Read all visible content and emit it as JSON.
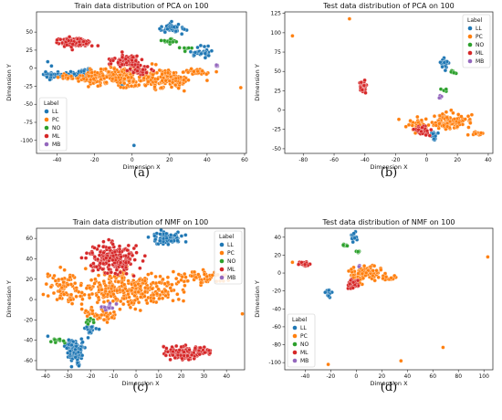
{
  "legend_title": "Label",
  "labels": [
    "LL",
    "PC",
    "NO",
    "ML",
    "MB"
  ],
  "colors": {
    "LL": "#1f77b4",
    "PC": "#ff7f0e",
    "NO": "#2ca02c",
    "ML": "#d62728",
    "MB": "#9467bd"
  },
  "chart_data": [
    {
      "type": "scatter",
      "title": "Train data distribution of PCA on 100",
      "caption": "(a)",
      "xlabel": "Dimension X",
      "ylabel": "Dimension Y",
      "xticks": [
        -40,
        -20,
        0,
        20,
        40,
        60
      ],
      "yticks": [
        -100,
        -75,
        -50,
        -25,
        0,
        25,
        50
      ],
      "xlim": [
        -51,
        61
      ],
      "ylim": [
        -118,
        78
      ],
      "legend_position": "lower-left",
      "series": [
        {
          "name": "LL",
          "clusters": [
            [
              -30,
              -9,
              14,
              3,
              70
            ],
            [
              -44,
              -10,
              3,
              4,
              20
            ],
            [
              22,
              55,
              6,
              6,
              40
            ],
            [
              37,
              22,
              6,
              7,
              30
            ],
            [
              -25,
              -2,
              3,
              4,
              10
            ],
            [
              -4,
              -20,
              3,
              4,
              10
            ]
          ],
          "points": [
            [
              1,
              -107
            ],
            [
              -45,
              9
            ],
            [
              -43,
              3
            ]
          ]
        },
        {
          "name": "PC",
          "clusters": [
            [
              -4,
              -12,
              18,
              12,
              240
            ],
            [
              20,
              -15,
              9,
              9,
              120
            ],
            [
              -20,
              -13,
              6,
              6,
              40
            ],
            [
              35,
              -5,
              5,
              5,
              30
            ],
            [
              -35,
              -13,
              6,
              3,
              20
            ]
          ],
          "points": [
            [
              58,
              -27
            ],
            [
              40,
              -17
            ],
            [
              45,
              -5
            ]
          ]
        },
        {
          "name": "NO",
          "clusters": [
            [
              20,
              36,
              3,
              3,
              18
            ],
            [
              30,
              27,
              3,
              3,
              8
            ]
          ],
          "points": []
        },
        {
          "name": "ML",
          "clusters": [
            [
              -31,
              36,
              7,
              6,
              120
            ],
            [
              -3,
              10,
              7,
              7,
              90
            ],
            [
              5,
              -3,
              5,
              5,
              40
            ]
          ],
          "points": []
        },
        {
          "name": "MB",
          "clusters": [
            [
              45,
              3,
              1,
              2,
              6
            ]
          ],
          "points": []
        }
      ]
    },
    {
      "type": "scatter",
      "title": "Test data distribution of PCA on 100",
      "caption": "(b)",
      "xlabel": "Dimension X",
      "ylabel": "Dimension Y",
      "xticks": [
        -80,
        -60,
        -40,
        -20,
        0,
        20,
        40
      ],
      "yticks": [
        -50,
        -25,
        0,
        25,
        50,
        75,
        100,
        125
      ],
      "xlim": [
        -92,
        43
      ],
      "ylim": [
        -56,
        127
      ],
      "legend_position": "top-right",
      "series": [
        {
          "name": "LL",
          "clusters": [
            [
              12,
              60,
              3,
              7,
              25
            ],
            [
              5,
              -33,
              3,
              5,
              15
            ]
          ],
          "points": []
        },
        {
          "name": "PC",
          "clusters": [
            [
              15,
              -15,
              10,
              10,
              100
            ],
            [
              -6,
              -20,
              6,
              6,
              40
            ],
            [
              33,
              -30,
              4,
              3,
              15
            ]
          ],
          "points": [
            [
              -87,
              96
            ],
            [
              -50,
              118
            ],
            [
              -18,
              -12
            ],
            [
              27,
              -8
            ]
          ]
        },
        {
          "name": "NO",
          "clusters": [
            [
              17,
              49,
              2,
              2,
              8
            ],
            [
              12,
              25,
              2,
              2,
              4
            ]
          ],
          "points": []
        },
        {
          "name": "ML",
          "clusters": [
            [
              -41,
              30,
              2,
              7,
              35
            ],
            [
              -3,
              -27,
              4,
              5,
              30
            ]
          ],
          "points": []
        },
        {
          "name": "MB",
          "clusters": [
            [
              9,
              18,
              1,
              2,
              5
            ]
          ],
          "points": []
        }
      ]
    },
    {
      "type": "scatter",
      "title": "Train data distribution of NMF on 100",
      "caption": "(c)",
      "xlabel": "Dimension X",
      "ylabel": "Dimension Y",
      "xticks": [
        -40,
        -30,
        -20,
        -10,
        0,
        10,
        20,
        30,
        40
      ],
      "yticks": [
        -60,
        -40,
        -20,
        0,
        20,
        40,
        60
      ],
      "xlim": [
        -44,
        48
      ],
      "ylim": [
        -69,
        70
      ],
      "legend_position": "top-right",
      "series": [
        {
          "name": "LL",
          "clusters": [
            [
              14,
              60,
              6,
              5,
              90
            ],
            [
              -27,
              -50,
              4,
              10,
              110
            ],
            [
              -20,
              -30,
              3,
              5,
              20
            ]
          ],
          "points": [
            [
              -39,
              -36
            ]
          ]
        },
        {
          "name": "PC",
          "clusters": [
            [
              -2,
              10,
              18,
              14,
              300
            ],
            [
              -33,
              18,
              5,
              10,
              40
            ],
            [
              30,
              22,
              10,
              6,
              60
            ],
            [
              -15,
              -15,
              6,
              6,
              40
            ],
            [
              -30,
              3,
              6,
              6,
              30
            ]
          ],
          "points": [
            [
              -41,
              5
            ],
            [
              -39,
              25
            ],
            [
              47,
              -14
            ]
          ]
        },
        {
          "name": "NO",
          "clusters": [
            [
              -34,
              -40,
              3,
              2,
              10
            ],
            [
              -20,
              -22,
              2,
              3,
              8
            ]
          ],
          "points": []
        },
        {
          "name": "ML",
          "clusters": [
            [
              -10,
              40,
              9,
              12,
              200
            ],
            [
              22,
              -52,
              9,
              6,
              140
            ]
          ],
          "points": []
        },
        {
          "name": "MB",
          "clusters": [
            [
              -12,
              -7,
              3,
              4,
              15
            ]
          ],
          "points": []
        }
      ]
    },
    {
      "type": "scatter",
      "title": "Test data distribution of NMF on 100",
      "caption": "(d)",
      "xlabel": "Dimension X",
      "ylabel": "Dimension Y",
      "xticks": [
        -40,
        -20,
        0,
        20,
        40,
        60,
        80,
        100
      ],
      "yticks": [
        -100,
        -80,
        -60,
        -40,
        -20,
        0,
        20,
        40
      ],
      "xlim": [
        -56,
        107
      ],
      "ylim": [
        -108,
        50
      ],
      "legend_position": "lower-left",
      "series": [
        {
          "name": "LL",
          "clusters": [
            [
              -2,
              40,
              2,
              5,
              20
            ],
            [
              -22,
              -22,
              2,
              4,
              15
            ]
          ],
          "points": []
        },
        {
          "name": "PC",
          "clusters": [
            [
              8,
              0,
              10,
              8,
              100
            ],
            [
              25,
              -5,
              5,
              3,
              15
            ]
          ],
          "points": [
            [
              103,
              18
            ],
            [
              68,
              -83
            ],
            [
              -22,
              -102
            ],
            [
              35,
              -98
            ],
            [
              -50,
              12
            ]
          ]
        },
        {
          "name": "NO",
          "clusters": [
            [
              -8,
              30,
              2,
              2,
              8
            ],
            [
              1,
              23,
              2,
              2,
              5
            ]
          ],
          "points": []
        },
        {
          "name": "ML",
          "clusters": [
            [
              -40,
              10,
              4,
              2,
              25
            ],
            [
              -2,
              -12,
              4,
              4,
              25
            ]
          ],
          "points": []
        },
        {
          "name": "MB",
          "clusters": [
            [
              2,
              8,
              1,
              1,
              4
            ]
          ],
          "points": []
        }
      ]
    }
  ]
}
